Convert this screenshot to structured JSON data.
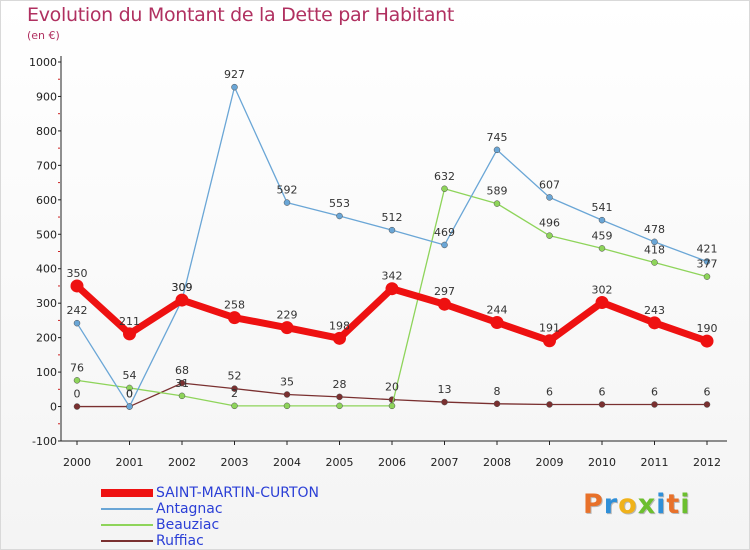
{
  "title": "Evolution du Montant de la Dette par Habitant",
  "subtitle": "(en €)",
  "logo": [
    "P",
    "r",
    "o",
    "x",
    "i",
    "t",
    "i"
  ],
  "logo_colors": [
    "#e8712a",
    "#2f8fd8",
    "#f0b21a",
    "#6cbf2f",
    "#2f8fd8",
    "#e8712a",
    "#6cbf2f"
  ],
  "chart_data": {
    "type": "line",
    "title": "Evolution du Montant de la Dette par Habitant",
    "ylabel": "(en €)",
    "xlabel": "",
    "x": [
      "2000",
      "2001",
      "2002",
      "2003",
      "2004",
      "2005",
      "2006",
      "2007",
      "2008",
      "2009",
      "2010",
      "2011",
      "2012"
    ],
    "ylim": [
      -100,
      1000
    ],
    "yticks": [
      -100,
      0,
      100,
      200,
      300,
      400,
      500,
      600,
      700,
      800,
      900,
      1000
    ],
    "grid": false,
    "legend_position": "bottom-left",
    "series": [
      {
        "name": "SAINT-MARTIN-CURTON",
        "color": "#ee1111",
        "values": [
          350,
          211,
          309,
          258,
          229,
          198,
          342,
          297,
          244,
          191,
          302,
          243,
          190
        ],
        "labels": [
          "350",
          "211",
          "309",
          "258",
          "229",
          "198",
          "342",
          "297",
          "244",
          "191",
          "302",
          "243",
          "190"
        ]
      },
      {
        "name": "Antagnac",
        "color": "#6aa6d6",
        "values": [
          242,
          0,
          309,
          927,
          592,
          553,
          512,
          469,
          745,
          607,
          541,
          478,
          421
        ],
        "labels": [
          "242",
          "0",
          "309",
          "927",
          "592",
          "553",
          "512",
          "469",
          "745",
          "607",
          "541",
          "478",
          "421"
        ]
      },
      {
        "name": "Beauziac",
        "color": "#8ed45a",
        "values": [
          76,
          54,
          31,
          2,
          2,
          2,
          2,
          632,
          589,
          496,
          459,
          418,
          377
        ],
        "labels": [
          "76",
          "54",
          "31",
          "2",
          "",
          "",
          "",
          "632",
          "589",
          "496",
          "459",
          "418",
          "377"
        ]
      },
      {
        "name": "Ruffiac",
        "color": "#7a3030",
        "values": [
          0,
          0,
          68,
          52,
          35,
          28,
          20,
          13,
          8,
          6,
          6,
          6,
          6
        ],
        "labels": [
          "0",
          "0",
          "68",
          "52",
          "35",
          "28",
          "20",
          "13",
          "8",
          "6",
          "6",
          "6",
          "6"
        ]
      }
    ]
  }
}
